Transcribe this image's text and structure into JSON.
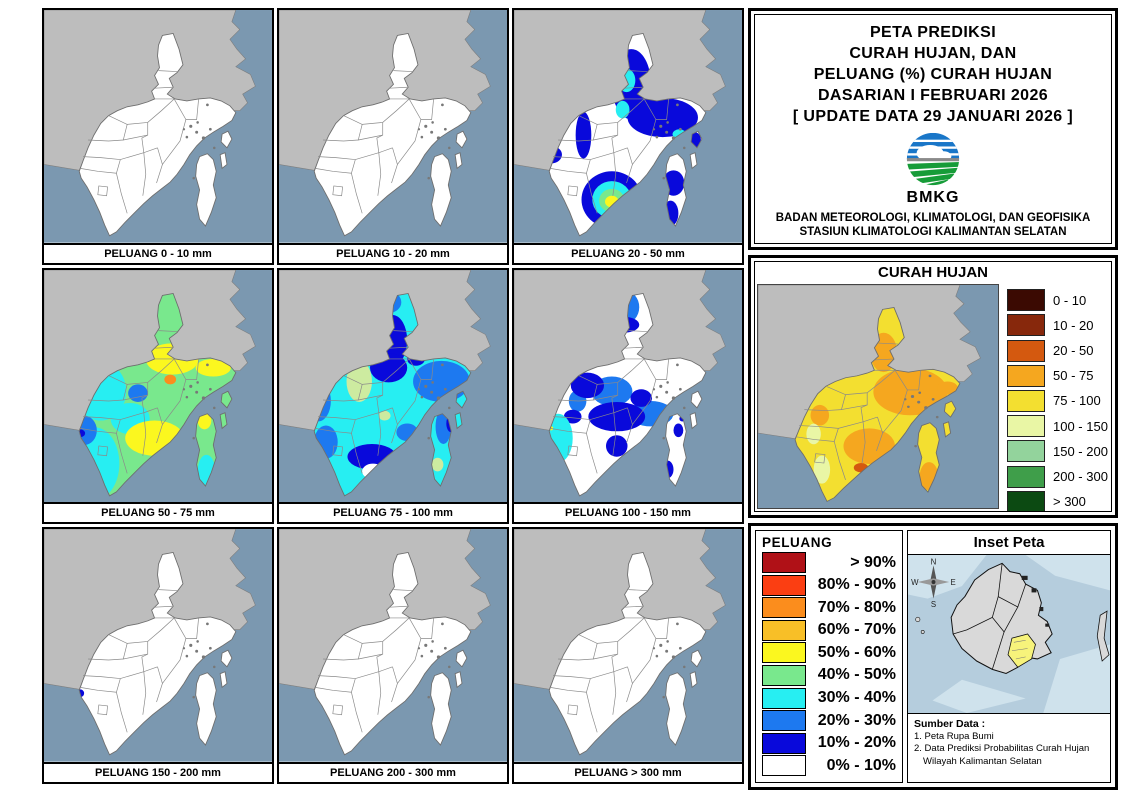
{
  "header": {
    "title_lines": [
      "PETA PREDIKSI",
      "CURAH HUJAN, DAN",
      "PELUANG (%) CURAH HUJAN",
      "DASARIAN I FEBRUARI 2026",
      "[ UPDATE DATA 29 JANUARI 2026 ]"
    ],
    "logo_text": "BMKG",
    "org_line1": "BADAN METEOROLOGI, KLIMATOLOGI, DAN GEOFISIKA",
    "org_line2": "STASIUN KLIMATOLOGI KALIMANTAN SELATAN"
  },
  "map_grid": {
    "captions": [
      "PELUANG 0 - 10 mm",
      "PELUANG 10 - 20 mm",
      "PELUANG 20 - 50 mm",
      "PELUANG 50 - 75 mm",
      "PELUANG 75 - 100 mm",
      "PELUANG 100 - 150 mm",
      "PELUANG 150 - 200 mm",
      "PELUANG 200 - 300 mm",
      "PELUANG > 300 mm"
    ]
  },
  "curah_hujan": {
    "title": "CURAH HUJAN",
    "legend": [
      {
        "label": "0 - 10",
        "color": "#3b0a02"
      },
      {
        "label": "10 - 20",
        "color": "#87280c"
      },
      {
        "label": "20 - 50",
        "color": "#d4590f"
      },
      {
        "label": "50 - 75",
        "color": "#f5a71f"
      },
      {
        "label": "75 - 100",
        "color": "#f3df30"
      },
      {
        "label": "100 - 150",
        "color": "#e9f6a5"
      },
      {
        "label": "150 - 200",
        "color": "#93d39c"
      },
      {
        "label": "200 - 300",
        "color": "#3f9e4a"
      },
      {
        "label": "> 300",
        "color": "#0c4a12"
      }
    ]
  },
  "peluang": {
    "title": "PELUANG",
    "legend": [
      {
        "label": "> 90%",
        "color": "#b01117"
      },
      {
        "label": "80% - 90%",
        "color": "#fb3e12"
      },
      {
        "label": "70% - 80%",
        "color": "#fb8d1d"
      },
      {
        "label": "60% - 70%",
        "color": "#f8bf27"
      },
      {
        "label": "50% - 60%",
        "color": "#fbf71f"
      },
      {
        "label": "40% - 50%",
        "color": "#79e88d"
      },
      {
        "label": "30% - 40%",
        "color": "#27eef2"
      },
      {
        "label": "20% - 30%",
        "color": "#1d79f0"
      },
      {
        "label": "10% - 20%",
        "color": "#0909db"
      },
      {
        "label": "0% - 10%",
        "color": "#ffffff"
      }
    ]
  },
  "inset": {
    "title": "Inset Peta",
    "compass": {
      "n": "N",
      "w": "W",
      "e": "E",
      "s": "S"
    },
    "sumber_lines": [
      "Sumber Data :",
      "1. Peta Rupa Bumi",
      "2. Data Prediksi Probabilitas Curah Hujan",
      "Wilayah Kalimantan Selatan"
    ]
  },
  "colors": {
    "sea": "#7b98b0",
    "land": "#bdbdbd",
    "white_region": "#ffffff",
    "inset_sea": "#b5cddd",
    "inset_sea_light": "#cfe2ec",
    "inset_land": "#d9d9d9",
    "inset_highlight": "#f7f37b",
    "logo_blue": "#1976c8",
    "logo_green": "#169c38"
  }
}
